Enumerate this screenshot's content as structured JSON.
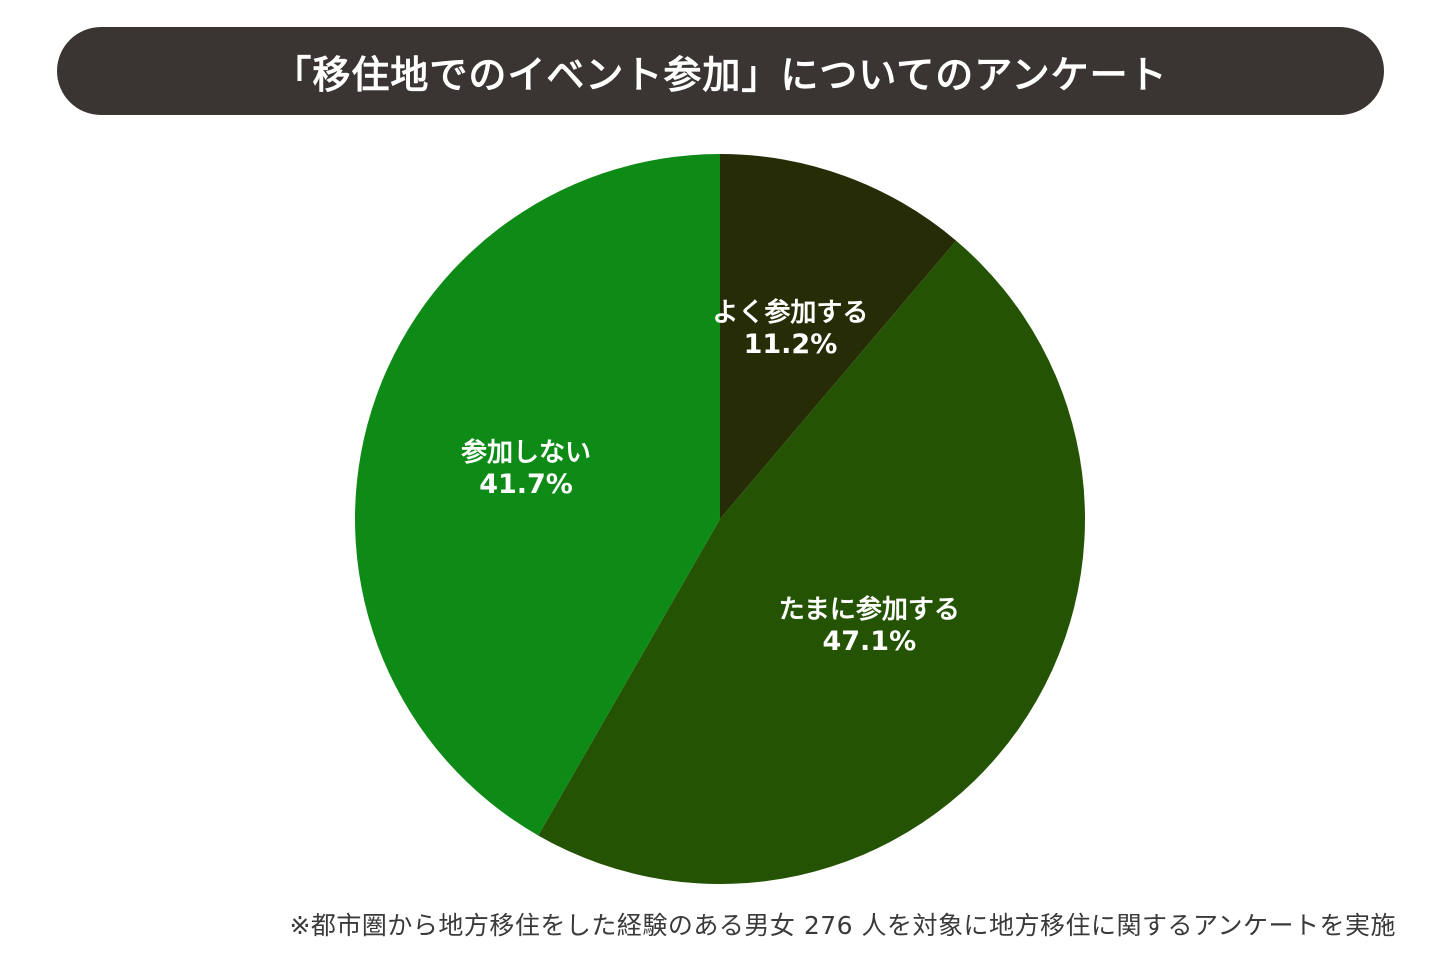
{
  "title": "「移住地でのイベント参加」についてのアンケート",
  "footnote": "※都市圏から地方移住をした経験のある男女 276 人を対象に地方移住に関するアンケートを実施",
  "chart_data": {
    "type": "pie",
    "start_angle_deg": 0,
    "direction": "clockwise",
    "slices": [
      {
        "label": "よく参加する",
        "value": 11.2,
        "value_label": "11.2%",
        "color": "#252c06"
      },
      {
        "label": "たまに参加する",
        "value": 47.1,
        "value_label": "47.1%",
        "color": "#245304"
      },
      {
        "label": "参加しない",
        "value": 41.7,
        "value_label": "41.7%",
        "color": "#0e8a16"
      }
    ],
    "label_color": "#ffffff"
  }
}
